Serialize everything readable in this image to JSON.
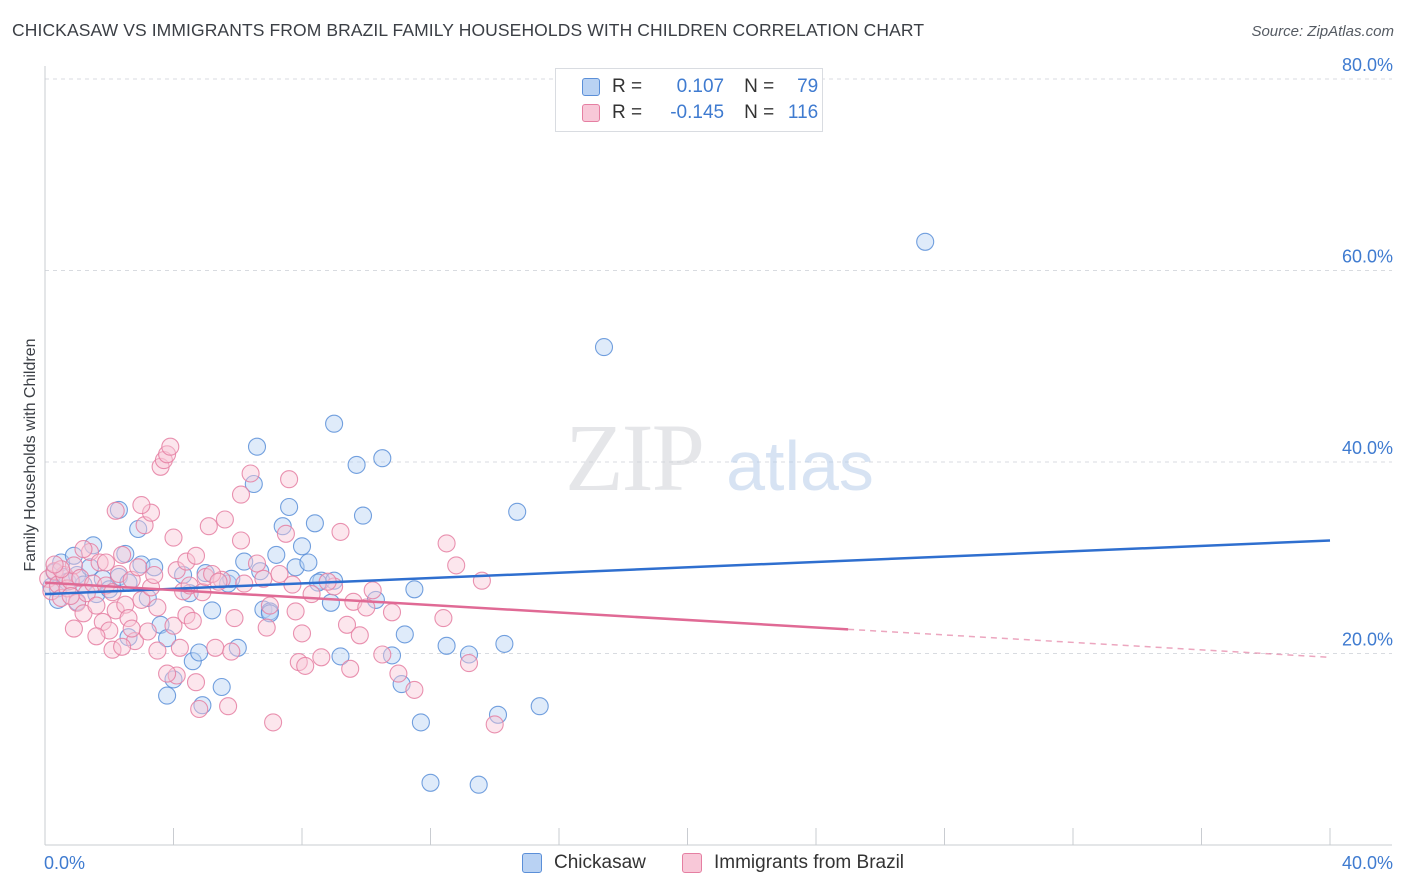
{
  "title": "CHICKASAW VS IMMIGRANTS FROM BRAZIL FAMILY HOUSEHOLDS WITH CHILDREN CORRELATION CHART",
  "source": "Source: ZipAtlas.com",
  "watermark": {
    "zip": "ZIP",
    "atlas": "atlas"
  },
  "legend": {
    "rows": [
      {
        "r_label": "R =",
        "r_value": "0.107",
        "n_label": "N =",
        "n_value": "79",
        "color": "#5b8fd8",
        "fill": "#b9d2f3"
      },
      {
        "r_label": "R =",
        "r_value": "-0.145",
        "n_label": "N =",
        "n_value": "116",
        "color": "#e57fa2",
        "fill": "#f8c8d8"
      }
    ]
  },
  "bottom_legend": [
    "Chickasaw",
    "Immigrants from Brazil"
  ],
  "chart_data": {
    "type": "scatter",
    "ylabel": "Family Households with Children",
    "xlim": [
      0,
      40
    ],
    "ylim": [
      0,
      80
    ],
    "x_tick_labels": [
      "0.0%",
      "40.0%"
    ],
    "y_ticks": [
      20,
      40,
      60,
      80
    ],
    "y_tick_labels": [
      "20.0%",
      "40.0%",
      "60.0%",
      "80.0%"
    ],
    "grid": true,
    "series": [
      {
        "name": "Chickasaw",
        "color": "#5b8fd8",
        "fill": "#b9d2f3",
        "trend": {
          "x0": 0,
          "y0": 26.2,
          "x1": 40,
          "y1": 31.8,
          "solid_to": 40
        },
        "points": [
          [
            0.2,
            27.0
          ],
          [
            0.3,
            28.5
          ],
          [
            0.4,
            26.8
          ],
          [
            0.5,
            29.5
          ],
          [
            0.6,
            28.0
          ],
          [
            0.7,
            27.5
          ],
          [
            0.9,
            30.2
          ],
          [
            1.0,
            28.2
          ],
          [
            1.2,
            27.2
          ],
          [
            1.4,
            29.0
          ],
          [
            1.5,
            31.3
          ],
          [
            1.6,
            26.2
          ],
          [
            1.8,
            27.8
          ],
          [
            2.0,
            26.7
          ],
          [
            2.3,
            28.0
          ],
          [
            2.5,
            30.4
          ],
          [
            2.6,
            27.4
          ],
          [
            2.9,
            33.0
          ],
          [
            3.0,
            29.3
          ],
          [
            3.2,
            25.8
          ],
          [
            3.4,
            29.0
          ],
          [
            3.6,
            23.0
          ],
          [
            3.8,
            21.6
          ],
          [
            4.0,
            17.3
          ],
          [
            4.3,
            28.2
          ],
          [
            4.5,
            26.3
          ],
          [
            4.6,
            19.2
          ],
          [
            4.8,
            20.1
          ],
          [
            5.0,
            28.4
          ],
          [
            5.2,
            24.5
          ],
          [
            5.5,
            16.5
          ],
          [
            5.7,
            27.3
          ],
          [
            5.8,
            27.8
          ],
          [
            6.0,
            20.6
          ],
          [
            6.2,
            29.6
          ],
          [
            6.5,
            37.7
          ],
          [
            6.7,
            28.6
          ],
          [
            6.8,
            24.6
          ],
          [
            7.0,
            24.4
          ],
          [
            7.2,
            30.3
          ],
          [
            7.4,
            33.3
          ],
          [
            7.6,
            35.3
          ],
          [
            7.8,
            29.0
          ],
          [
            8.0,
            31.2
          ],
          [
            8.2,
            29.5
          ],
          [
            8.4,
            33.6
          ],
          [
            8.6,
            27.6
          ],
          [
            8.9,
            25.3
          ],
          [
            9.0,
            27.6
          ],
          [
            9.2,
            19.7
          ],
          [
            9.7,
            39.7
          ],
          [
            9.9,
            34.4
          ],
          [
            10.3,
            25.6
          ],
          [
            10.8,
            19.8
          ],
          [
            11.1,
            16.8
          ],
          [
            11.2,
            22.0
          ],
          [
            11.5,
            26.7
          ],
          [
            11.7,
            12.8
          ],
          [
            12.0,
            6.5
          ],
          [
            12.5,
            20.8
          ],
          [
            13.2,
            19.9
          ],
          [
            13.5,
            6.3
          ],
          [
            14.1,
            13.6
          ],
          [
            14.3,
            21.0
          ],
          [
            14.7,
            34.8
          ],
          [
            15.4,
            14.5
          ],
          [
            17.4,
            52.0
          ],
          [
            27.4,
            63.0
          ],
          [
            2.3,
            35.0
          ],
          [
            6.6,
            41.6
          ],
          [
            8.5,
            27.4
          ],
          [
            9.0,
            44.0
          ],
          [
            10.5,
            40.4
          ],
          [
            4.9,
            14.6
          ],
          [
            3.8,
            15.6
          ],
          [
            1.0,
            25.4
          ],
          [
            0.4,
            25.6
          ],
          [
            2.6,
            21.7
          ],
          [
            7.0,
            24.2
          ]
        ]
      },
      {
        "name": "Immigrants from Brazil",
        "color": "#e57fa2",
        "fill": "#f8c8d8",
        "trend": {
          "x0": 0,
          "y0": 27.4,
          "x1": 40,
          "y1": 19.6,
          "solid_to": 25.0
        },
        "points": [
          [
            0.1,
            27.8
          ],
          [
            0.2,
            26.5
          ],
          [
            0.3,
            28.6
          ],
          [
            0.4,
            27.2
          ],
          [
            0.5,
            25.8
          ],
          [
            0.6,
            28.2
          ],
          [
            0.7,
            26.8
          ],
          [
            0.8,
            27.6
          ],
          [
            0.9,
            29.2
          ],
          [
            1.0,
            25.3
          ],
          [
            1.1,
            27.9
          ],
          [
            1.2,
            24.2
          ],
          [
            1.3,
            26.3
          ],
          [
            1.4,
            30.6
          ],
          [
            1.5,
            27.3
          ],
          [
            1.6,
            25.0
          ],
          [
            1.7,
            29.5
          ],
          [
            1.8,
            23.3
          ],
          [
            1.9,
            27.1
          ],
          [
            2.0,
            22.4
          ],
          [
            2.1,
            26.4
          ],
          [
            2.2,
            24.5
          ],
          [
            2.3,
            28.3
          ],
          [
            2.4,
            30.3
          ],
          [
            2.5,
            25.1
          ],
          [
            2.6,
            23.7
          ],
          [
            2.7,
            27.7
          ],
          [
            2.8,
            21.3
          ],
          [
            2.9,
            29.0
          ],
          [
            3.0,
            25.6
          ],
          [
            3.1,
            33.4
          ],
          [
            3.2,
            22.3
          ],
          [
            3.3,
            26.9
          ],
          [
            3.4,
            28.2
          ],
          [
            3.5,
            24.8
          ],
          [
            3.6,
            39.5
          ],
          [
            3.7,
            40.2
          ],
          [
            3.8,
            40.8
          ],
          [
            3.9,
            41.6
          ],
          [
            4.0,
            22.9
          ],
          [
            4.1,
            28.7
          ],
          [
            4.2,
            20.6
          ],
          [
            4.3,
            26.5
          ],
          [
            4.4,
            24.0
          ],
          [
            4.5,
            27.1
          ],
          [
            4.6,
            23.4
          ],
          [
            4.7,
            17.0
          ],
          [
            4.8,
            14.2
          ],
          [
            4.9,
            26.4
          ],
          [
            5.0,
            28.0
          ],
          [
            5.1,
            33.3
          ],
          [
            5.3,
            20.6
          ],
          [
            5.5,
            27.7
          ],
          [
            5.6,
            34.0
          ],
          [
            5.7,
            14.5
          ],
          [
            5.9,
            23.7
          ],
          [
            6.1,
            31.8
          ],
          [
            6.2,
            27.3
          ],
          [
            6.4,
            38.8
          ],
          [
            6.6,
            29.4
          ],
          [
            6.8,
            27.8
          ],
          [
            7.0,
            25.0
          ],
          [
            7.1,
            12.8
          ],
          [
            7.3,
            28.3
          ],
          [
            7.5,
            32.5
          ],
          [
            7.7,
            27.2
          ],
          [
            7.9,
            19.1
          ],
          [
            8.1,
            18.7
          ],
          [
            8.3,
            26.2
          ],
          [
            8.6,
            19.6
          ],
          [
            9.0,
            27.0
          ],
          [
            9.2,
            32.7
          ],
          [
            9.4,
            23.0
          ],
          [
            9.5,
            18.4
          ],
          [
            9.8,
            21.9
          ],
          [
            10.2,
            26.6
          ],
          [
            10.5,
            19.9
          ],
          [
            11.0,
            17.9
          ],
          [
            11.5,
            16.2
          ],
          [
            12.5,
            31.5
          ],
          [
            12.8,
            29.2
          ],
          [
            13.2,
            19.0
          ],
          [
            13.6,
            27.6
          ],
          [
            14.0,
            12.6
          ],
          [
            3.3,
            34.7
          ],
          [
            2.2,
            34.9
          ],
          [
            1.2,
            30.9
          ],
          [
            0.5,
            28.8
          ],
          [
            0.8,
            26.0
          ],
          [
            1.9,
            29.5
          ],
          [
            4.4,
            29.6
          ],
          [
            4.7,
            30.2
          ],
          [
            5.2,
            28.3
          ],
          [
            5.4,
            27.5
          ],
          [
            7.6,
            38.2
          ],
          [
            4.0,
            32.1
          ],
          [
            6.1,
            36.6
          ],
          [
            3.0,
            35.5
          ],
          [
            2.1,
            20.4
          ],
          [
            2.7,
            22.6
          ],
          [
            3.5,
            20.3
          ],
          [
            6.9,
            22.7
          ],
          [
            7.8,
            24.4
          ],
          [
            8.8,
            27.5
          ],
          [
            10.8,
            24.3
          ],
          [
            12.4,
            23.7
          ],
          [
            1.6,
            21.8
          ],
          [
            0.9,
            22.6
          ],
          [
            4.1,
            17.7
          ],
          [
            5.8,
            20.2
          ],
          [
            0.3,
            29.3
          ],
          [
            2.4,
            20.7
          ],
          [
            3.8,
            17.9
          ],
          [
            8.0,
            22.1
          ],
          [
            9.6,
            25.4
          ],
          [
            10.0,
            24.8
          ]
        ]
      }
    ]
  }
}
